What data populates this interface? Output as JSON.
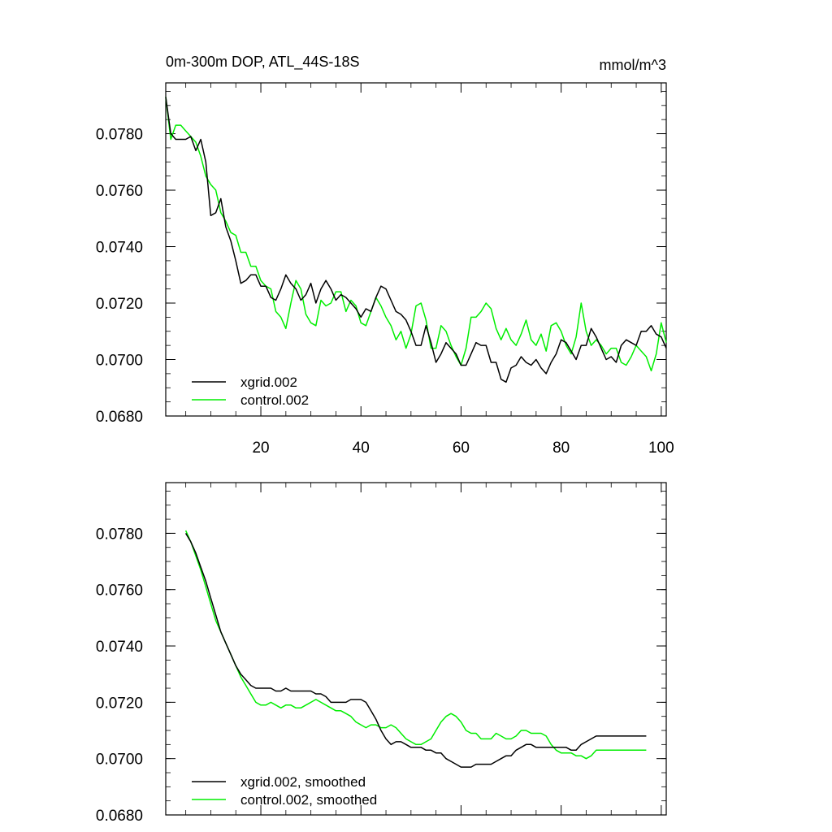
{
  "chart_data": [
    {
      "type": "line",
      "title": "0m-300m DOP, ATL_44S-18S",
      "units": "mmol/m^3",
      "xlabel": "",
      "ylabel": "",
      "xlim": [
        1,
        101
      ],
      "ylim": [
        0.068,
        0.0798
      ],
      "xticks": [
        20,
        40,
        60,
        80,
        100
      ],
      "xtick_labels": [
        "20",
        "40",
        "60",
        "80",
        "100"
      ],
      "yticks": [
        0.068,
        0.07,
        0.072,
        0.074,
        0.076,
        0.078
      ],
      "ytick_labels": [
        "0.0680",
        "0.0700",
        "0.0720",
        "0.0740",
        "0.0760",
        "0.0780"
      ],
      "legend_position": "bottom-left",
      "series": [
        {
          "name": "xgrid.002",
          "color": "#000000",
          "x": [
            1,
            2,
            3,
            4,
            5,
            6,
            7,
            8,
            9,
            10,
            11,
            12,
            13,
            14,
            15,
            16,
            17,
            18,
            19,
            20,
            21,
            22,
            23,
            24,
            25,
            26,
            27,
            28,
            29,
            30,
            31,
            32,
            33,
            34,
            35,
            36,
            37,
            38,
            39,
            40,
            41,
            42,
            43,
            44,
            45,
            46,
            47,
            48,
            49,
            50,
            51,
            52,
            53,
            54,
            55,
            56,
            57,
            58,
            59,
            60,
            61,
            62,
            63,
            64,
            65,
            66,
            67,
            68,
            69,
            70,
            71,
            72,
            73,
            74,
            75,
            76,
            77,
            78,
            79,
            80,
            81,
            82,
            83,
            84,
            85,
            86,
            87,
            88,
            89,
            90,
            91,
            92,
            93,
            94,
            95,
            96,
            97,
            98,
            99,
            100,
            101
          ],
          "values": [
            0.0793,
            0.078,
            0.0778,
            0.0778,
            0.0778,
            0.0779,
            0.0774,
            0.0778,
            0.077,
            0.0751,
            0.0752,
            0.0757,
            0.0747,
            0.0742,
            0.0735,
            0.0727,
            0.0728,
            0.073,
            0.073,
            0.0726,
            0.0726,
            0.0722,
            0.0721,
            0.0725,
            0.073,
            0.0727,
            0.0725,
            0.0721,
            0.0723,
            0.0727,
            0.072,
            0.0725,
            0.0728,
            0.0725,
            0.0721,
            0.0723,
            0.0722,
            0.072,
            0.0718,
            0.0715,
            0.0718,
            0.0717,
            0.0722,
            0.0726,
            0.0725,
            0.0721,
            0.0717,
            0.0716,
            0.0714,
            0.071,
            0.0705,
            0.0705,
            0.0712,
            0.0706,
            0.0699,
            0.0702,
            0.0706,
            0.0704,
            0.0702,
            0.0698,
            0.0698,
            0.0702,
            0.0706,
            0.0705,
            0.0705,
            0.0699,
            0.0699,
            0.0693,
            0.0692,
            0.0697,
            0.0698,
            0.0701,
            0.0699,
            0.0698,
            0.07,
            0.0697,
            0.0695,
            0.0699,
            0.0702,
            0.0707,
            0.0706,
            0.0703,
            0.07,
            0.0705,
            0.0705,
            0.0711,
            0.0708,
            0.0704,
            0.07,
            0.0701,
            0.0699,
            0.0705,
            0.0707,
            0.0706,
            0.0705,
            0.071,
            0.071,
            0.0712,
            0.0709,
            0.0708,
            0.0704
          ]
        },
        {
          "name": "control.002",
          "color": "#00ee00",
          "x": [
            1,
            2,
            3,
            4,
            5,
            6,
            7,
            8,
            9,
            10,
            11,
            12,
            13,
            14,
            15,
            16,
            17,
            18,
            19,
            20,
            21,
            22,
            23,
            24,
            25,
            26,
            27,
            28,
            29,
            30,
            31,
            32,
            33,
            34,
            35,
            36,
            37,
            38,
            39,
            40,
            41,
            42,
            43,
            44,
            45,
            46,
            47,
            48,
            49,
            50,
            51,
            52,
            53,
            54,
            55,
            56,
            57,
            58,
            59,
            60,
            61,
            62,
            63,
            64,
            65,
            66,
            67,
            68,
            69,
            70,
            71,
            72,
            73,
            74,
            75,
            76,
            77,
            78,
            79,
            80,
            81,
            82,
            83,
            84,
            85,
            86,
            87,
            88,
            89,
            90,
            91,
            92,
            93,
            94,
            95,
            96,
            97,
            98,
            99,
            100,
            101
          ],
          "values": [
            0.0793,
            0.0778,
            0.0783,
            0.0783,
            0.0781,
            0.0779,
            0.0777,
            0.0772,
            0.0765,
            0.0762,
            0.076,
            0.0752,
            0.0749,
            0.0745,
            0.0744,
            0.0738,
            0.0738,
            0.0733,
            0.0733,
            0.0728,
            0.0726,
            0.0725,
            0.0717,
            0.0715,
            0.0711,
            0.072,
            0.0728,
            0.0725,
            0.0716,
            0.0713,
            0.0712,
            0.0721,
            0.0719,
            0.072,
            0.0724,
            0.0724,
            0.0717,
            0.0721,
            0.0719,
            0.0713,
            0.0712,
            0.0717,
            0.0722,
            0.0719,
            0.0715,
            0.0712,
            0.0707,
            0.071,
            0.0704,
            0.0709,
            0.0719,
            0.072,
            0.0714,
            0.0704,
            0.0704,
            0.0712,
            0.071,
            0.0705,
            0.0701,
            0.0698,
            0.0704,
            0.0715,
            0.0715,
            0.0717,
            0.072,
            0.0718,
            0.0711,
            0.0707,
            0.0711,
            0.0707,
            0.0705,
            0.0709,
            0.0714,
            0.0707,
            0.0705,
            0.0709,
            0.0703,
            0.0712,
            0.0713,
            0.071,
            0.0705,
            0.0702,
            0.0708,
            0.072,
            0.071,
            0.0705,
            0.0707,
            0.0705,
            0.0702,
            0.0704,
            0.0704,
            0.0699,
            0.0698,
            0.0701,
            0.0705,
            0.0703,
            0.0701,
            0.0696,
            0.0702,
            0.0713,
            0.0706
          ]
        }
      ]
    },
    {
      "type": "line",
      "title": "",
      "xlabel": "",
      "ylabel": "",
      "xlim": [
        1,
        101
      ],
      "ylim": [
        0.068,
        0.0798
      ],
      "xticks": [
        20,
        40,
        60,
        80,
        100
      ],
      "xtick_labels": [],
      "yticks": [
        0.068,
        0.07,
        0.072,
        0.074,
        0.076,
        0.078
      ],
      "ytick_labels": [
        "0.0680",
        "0.0700",
        "0.0720",
        "0.0740",
        "0.0760",
        "0.0780"
      ],
      "legend_position": "bottom-left",
      "series": [
        {
          "name": "xgrid.002, smoothed",
          "color": "#000000",
          "x": [
            5,
            6,
            7,
            8,
            9,
            10,
            11,
            12,
            13,
            14,
            15,
            16,
            17,
            18,
            19,
            20,
            21,
            22,
            23,
            24,
            25,
            26,
            27,
            28,
            29,
            30,
            31,
            32,
            33,
            34,
            35,
            36,
            37,
            38,
            39,
            40,
            41,
            42,
            43,
            44,
            45,
            46,
            47,
            48,
            49,
            50,
            51,
            52,
            53,
            54,
            55,
            56,
            57,
            58,
            59,
            60,
            61,
            62,
            63,
            64,
            65,
            66,
            67,
            68,
            69,
            70,
            71,
            72,
            73,
            74,
            75,
            76,
            77,
            78,
            79,
            80,
            81,
            82,
            83,
            84,
            85,
            86,
            87,
            88,
            89,
            90,
            91,
            92,
            93,
            94,
            95,
            96,
            97
          ],
          "values": [
            0.078,
            0.0777,
            0.0773,
            0.0768,
            0.0763,
            0.0757,
            0.0751,
            0.0745,
            0.0741,
            0.0737,
            0.0733,
            0.073,
            0.0728,
            0.0726,
            0.0725,
            0.0725,
            0.0725,
            0.0725,
            0.0724,
            0.0724,
            0.0725,
            0.0724,
            0.0724,
            0.0724,
            0.0724,
            0.0724,
            0.0723,
            0.0723,
            0.0722,
            0.072,
            0.072,
            0.072,
            0.072,
            0.0721,
            0.0721,
            0.0721,
            0.072,
            0.0717,
            0.0714,
            0.071,
            0.0707,
            0.0705,
            0.0706,
            0.0706,
            0.0705,
            0.0704,
            0.0704,
            0.0704,
            0.0703,
            0.0703,
            0.0702,
            0.0702,
            0.07,
            0.0699,
            0.0698,
            0.0697,
            0.0697,
            0.0697,
            0.0698,
            0.0698,
            0.0698,
            0.0698,
            0.0699,
            0.07,
            0.0701,
            0.0701,
            0.0703,
            0.0704,
            0.0705,
            0.0705,
            0.0704,
            0.0704,
            0.0704,
            0.0704,
            0.0704,
            0.0704,
            0.0704,
            0.0703,
            0.0703,
            0.0705,
            0.0706,
            0.0707,
            0.0708,
            0.0708,
            0.0708,
            0.0708,
            0.0708,
            0.0708,
            0.0708,
            0.0708,
            0.0708,
            0.0708,
            0.0708
          ]
        },
        {
          "name": "control.002, smoothed",
          "color": "#00ee00",
          "x": [
            5,
            6,
            7,
            8,
            9,
            10,
            11,
            12,
            13,
            14,
            15,
            16,
            17,
            18,
            19,
            20,
            21,
            22,
            23,
            24,
            25,
            26,
            27,
            28,
            29,
            30,
            31,
            32,
            33,
            34,
            35,
            36,
            37,
            38,
            39,
            40,
            41,
            42,
            43,
            44,
            45,
            46,
            47,
            48,
            49,
            50,
            51,
            52,
            53,
            54,
            55,
            56,
            57,
            58,
            59,
            60,
            61,
            62,
            63,
            64,
            65,
            66,
            67,
            68,
            69,
            70,
            71,
            72,
            73,
            74,
            75,
            76,
            77,
            78,
            79,
            80,
            81,
            82,
            83,
            84,
            85,
            86,
            87,
            88,
            89,
            90,
            91,
            92,
            93,
            94,
            95,
            96,
            97
          ],
          "values": [
            0.0781,
            0.0777,
            0.0772,
            0.0767,
            0.0761,
            0.0755,
            0.0749,
            0.0745,
            0.0741,
            0.0737,
            0.0733,
            0.0729,
            0.0726,
            0.0723,
            0.072,
            0.0719,
            0.0719,
            0.072,
            0.0719,
            0.0718,
            0.0719,
            0.0719,
            0.0718,
            0.0718,
            0.0719,
            0.072,
            0.0721,
            0.072,
            0.0719,
            0.0718,
            0.0717,
            0.0717,
            0.0716,
            0.0715,
            0.0713,
            0.0712,
            0.0711,
            0.0712,
            0.0712,
            0.0711,
            0.0711,
            0.0712,
            0.0711,
            0.0709,
            0.0707,
            0.0706,
            0.0705,
            0.0705,
            0.0706,
            0.0707,
            0.071,
            0.0713,
            0.0715,
            0.0716,
            0.0715,
            0.0713,
            0.071,
            0.0709,
            0.0709,
            0.0707,
            0.0707,
            0.0707,
            0.0709,
            0.0708,
            0.0707,
            0.0707,
            0.0708,
            0.071,
            0.071,
            0.0709,
            0.0709,
            0.0709,
            0.0708,
            0.0705,
            0.0703,
            0.0702,
            0.0702,
            0.0702,
            0.0701,
            0.0701,
            0.07,
            0.0701,
            0.0703,
            0.0703,
            0.0703,
            0.0703,
            0.0703,
            0.0703,
            0.0703,
            0.0703,
            0.0703,
            0.0703,
            0.0703
          ]
        }
      ]
    }
  ]
}
